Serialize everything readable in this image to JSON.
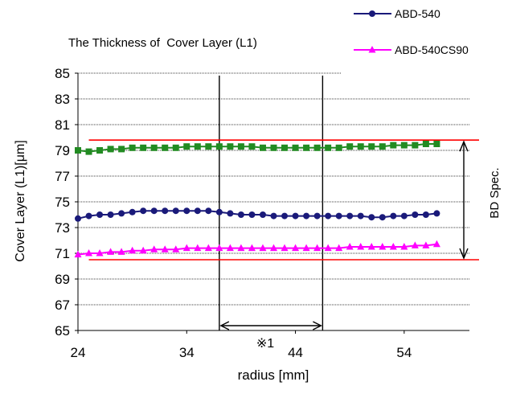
{
  "chart_data": {
    "type": "line",
    "title": "The Thickness of  Cover Layer (L1)",
    "xlabel": "radius [mm]",
    "ylabel": "Cover Layer (L1)[μm]",
    "xlim": [
      24,
      60
    ],
    "ylim": [
      65,
      85
    ],
    "xticks": [
      "24",
      "34",
      "44",
      "54"
    ],
    "yticks": [
      "65",
      "67",
      "69",
      "71",
      "73",
      "75",
      "77",
      "79",
      "81",
      "83",
      "85"
    ],
    "grid": "horizontal dotted",
    "legend_position": "top-right",
    "x": [
      24,
      25,
      26,
      27,
      28,
      29,
      30,
      31,
      32,
      33,
      34,
      35,
      36,
      37,
      38,
      39,
      40,
      41,
      42,
      43,
      44,
      45,
      46,
      47,
      48,
      49,
      50,
      51,
      52,
      53,
      54,
      55,
      56,
      57
    ],
    "series": [
      {
        "name": "ABD-540",
        "color": "#1a1a7a",
        "marker": "circle",
        "values": [
          73.7,
          73.9,
          74.0,
          74.0,
          74.1,
          74.2,
          74.3,
          74.3,
          74.3,
          74.3,
          74.3,
          74.3,
          74.3,
          74.2,
          74.1,
          74.0,
          74.0,
          74.0,
          73.9,
          73.9,
          73.9,
          73.9,
          73.9,
          73.9,
          73.9,
          73.9,
          73.9,
          73.8,
          73.8,
          73.9,
          73.9,
          74.0,
          74.0,
          74.1
        ]
      },
      {
        "name": "ABD-540CS90",
        "color": "#ff00ff",
        "marker": "triangle",
        "values": [
          70.9,
          71.0,
          71.0,
          71.1,
          71.1,
          71.2,
          71.2,
          71.3,
          71.3,
          71.3,
          71.4,
          71.4,
          71.4,
          71.4,
          71.4,
          71.4,
          71.4,
          71.4,
          71.4,
          71.4,
          71.4,
          71.4,
          71.4,
          71.4,
          71.4,
          71.5,
          71.5,
          71.5,
          71.5,
          71.5,
          71.5,
          71.6,
          71.6,
          71.7
        ]
      },
      {
        "color": "#228b22",
        "marker": "square",
        "values": [
          79.0,
          78.9,
          79.0,
          79.1,
          79.1,
          79.2,
          79.2,
          79.2,
          79.2,
          79.2,
          79.3,
          79.3,
          79.3,
          79.3,
          79.3,
          79.3,
          79.3,
          79.2,
          79.2,
          79.2,
          79.2,
          79.2,
          79.2,
          79.2,
          79.2,
          79.3,
          79.3,
          79.3,
          79.3,
          79.4,
          79.4,
          79.4,
          79.5,
          79.5
        ]
      }
    ],
    "spec_lines": {
      "color": "#ff0000",
      "upper": {
        "y": 79.8,
        "x_from": 25,
        "x_to": 61
      },
      "lower": {
        "y": 70.5,
        "x_from": 25,
        "x_to": 61
      },
      "label": "BD Spec."
    },
    "vertical_lines": [
      37,
      46.5
    ],
    "range_annotation": {
      "from": 37,
      "to": 46.5,
      "label": "※1"
    }
  }
}
